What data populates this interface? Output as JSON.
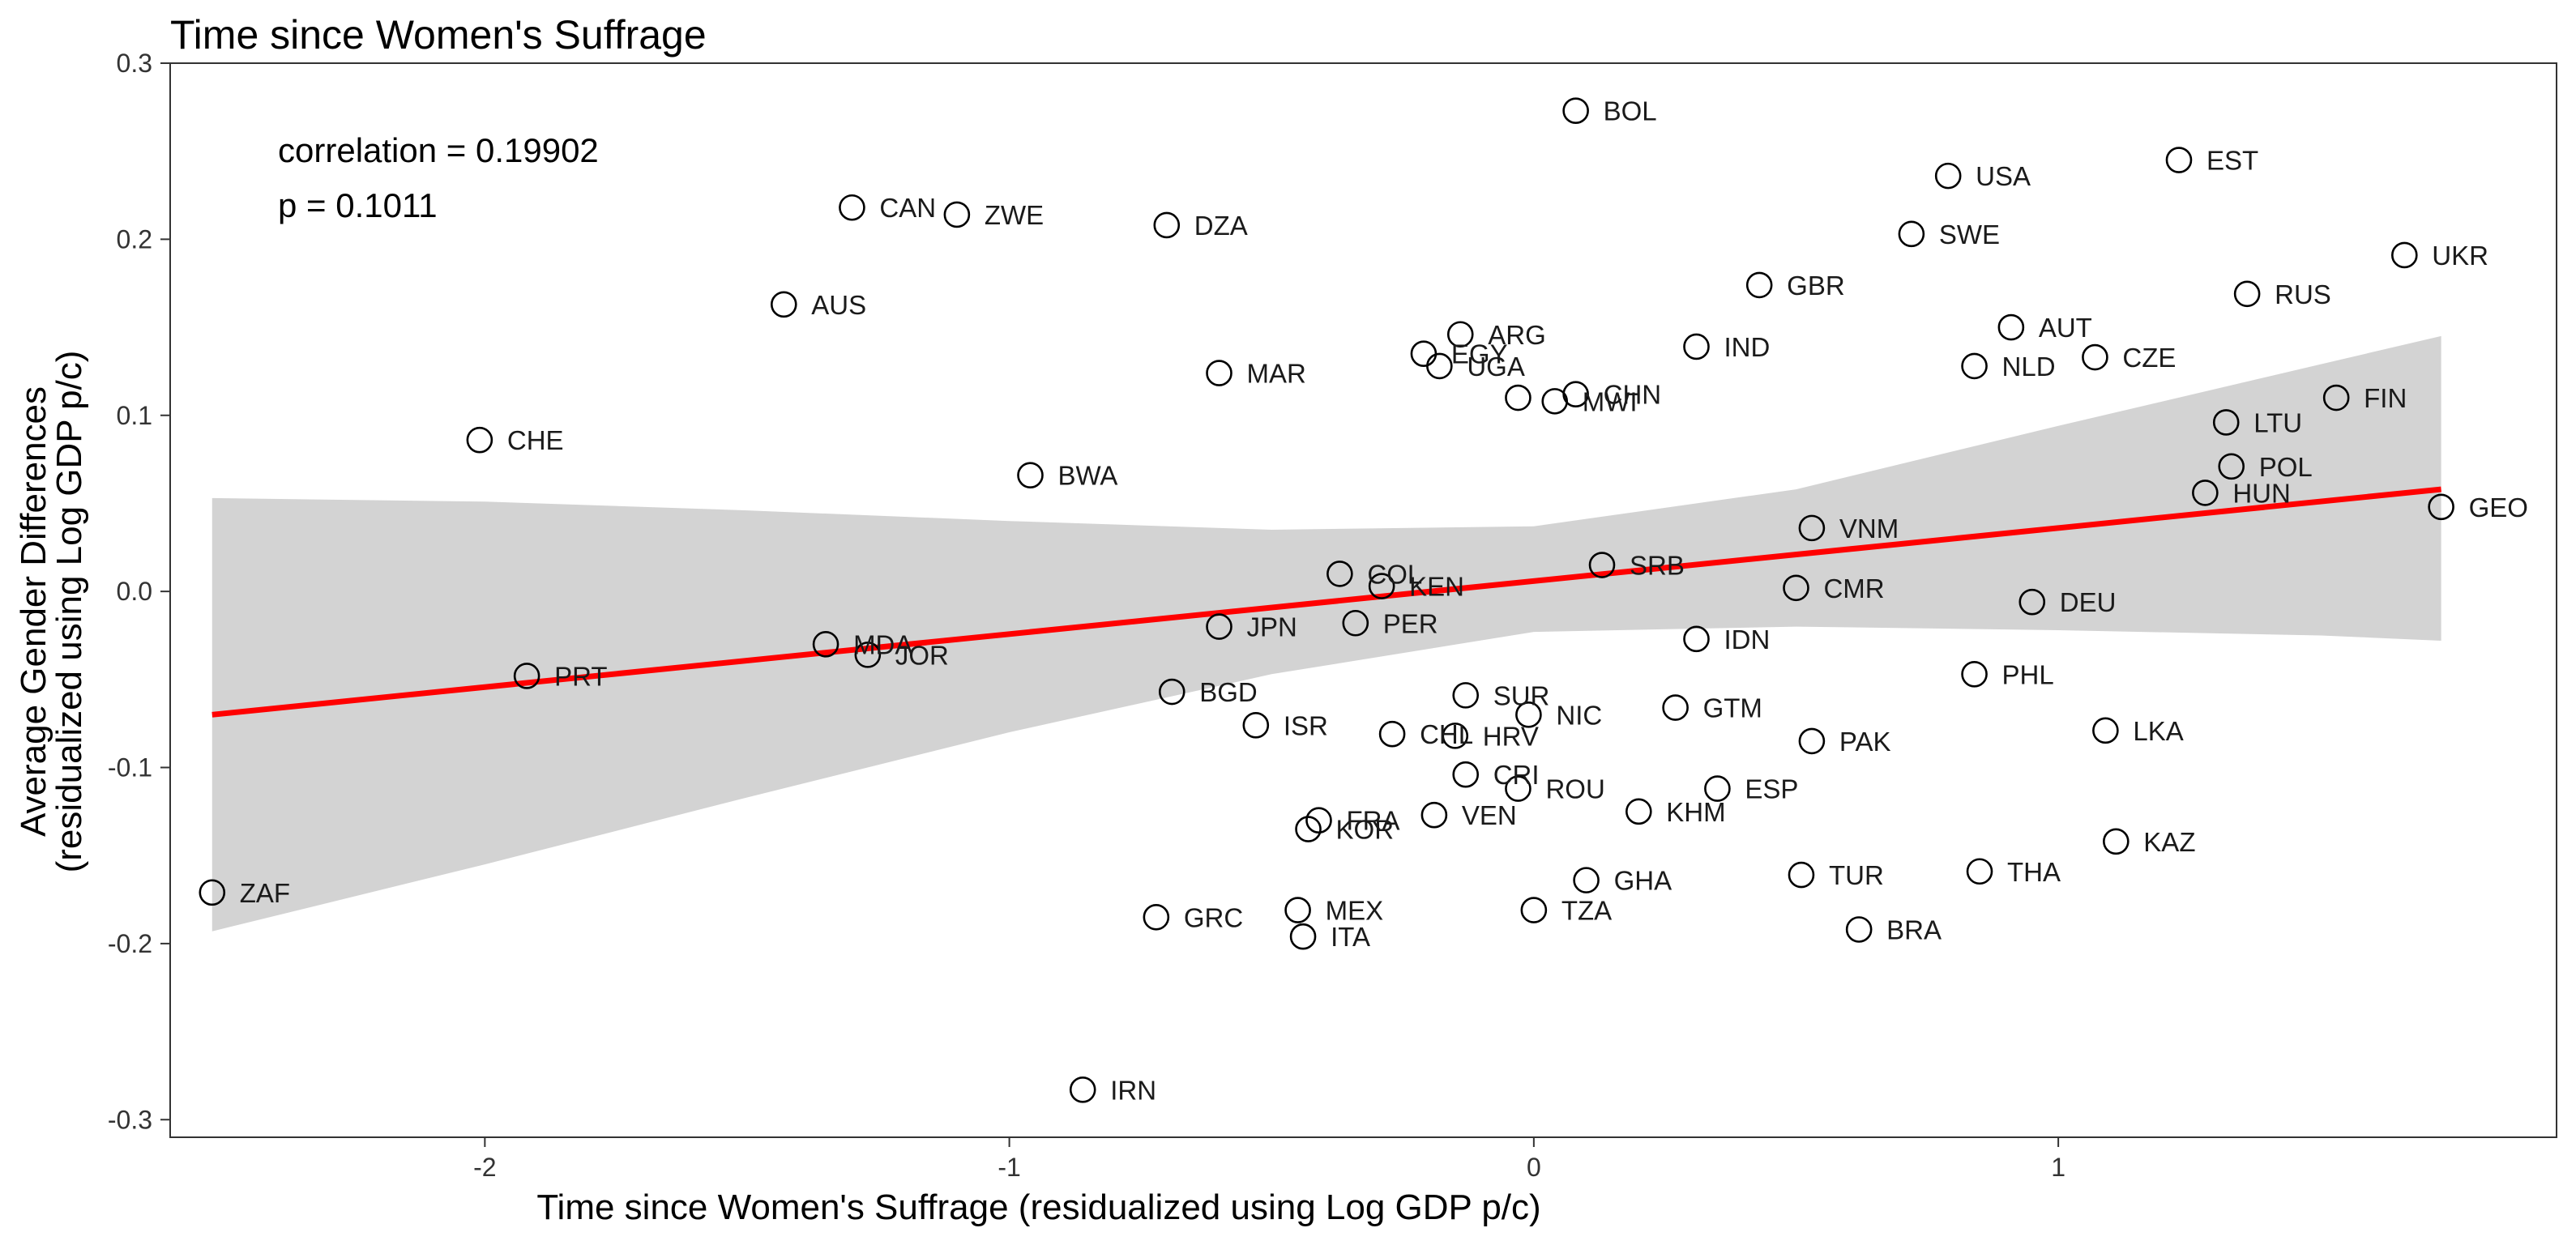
{
  "chart_data": {
    "type": "scatter",
    "title": "Time since Women's Suffrage",
    "xlabel": "Time since Women's Suffrage (residualized using Log GDP p/c)",
    "ylabel_line1": "Average Gender Differences",
    "ylabel_line2": "(residualized using Log GDP p/c)",
    "xlim": [
      -2.6,
      1.95
    ],
    "ylim": [
      -0.31,
      0.3
    ],
    "xticks": [
      -2,
      -1,
      0,
      1
    ],
    "xtick_labels": [
      "-2",
      "-1",
      "0",
      "1"
    ],
    "yticks": [
      0.3,
      0.2,
      0.1,
      0.0,
      -0.1,
      -0.2,
      -0.3
    ],
    "ytick_labels": [
      "0.3",
      "0.2",
      "0.1",
      "0.0",
      "-0.1",
      "-0.2",
      "-0.3"
    ],
    "grid": false,
    "annotations": {
      "correlation": "correlation = 0.19902",
      "p_value": "p = 0.1011"
    },
    "regression": {
      "x": [
        -2.52,
        1.73
      ],
      "y": [
        -0.07,
        0.058
      ],
      "color": "#ff0000"
    },
    "confidence_band": {
      "x": [
        -2.52,
        -2.0,
        -1.5,
        -1.0,
        -0.5,
        0.0,
        0.5,
        1.0,
        1.5,
        1.73
      ],
      "upper": [
        0.053,
        0.051,
        0.046,
        0.04,
        0.035,
        0.037,
        0.058,
        0.094,
        0.129,
        0.145
      ],
      "lower": [
        -0.193,
        -0.155,
        -0.117,
        -0.08,
        -0.047,
        -0.023,
        -0.02,
        -0.022,
        -0.025,
        -0.028
      ],
      "color": "#d3d3d3"
    },
    "points": [
      {
        "label": "BOL",
        "x": 0.08,
        "y": 0.273
      },
      {
        "label": "EST",
        "x": 1.23,
        "y": 0.245
      },
      {
        "label": "USA",
        "x": 0.79,
        "y": 0.236
      },
      {
        "label": "CAN",
        "x": -1.3,
        "y": 0.218
      },
      {
        "label": "ZWE",
        "x": -1.1,
        "y": 0.214
      },
      {
        "label": "DZA",
        "x": -0.7,
        "y": 0.208
      },
      {
        "label": "SWE",
        "x": 0.72,
        "y": 0.203
      },
      {
        "label": "UKR",
        "x": 1.66,
        "y": 0.191
      },
      {
        "label": "GBR",
        "x": 0.43,
        "y": 0.174
      },
      {
        "label": "RUS",
        "x": 1.36,
        "y": 0.169
      },
      {
        "label": "AUS",
        "x": -1.43,
        "y": 0.163
      },
      {
        "label": "AUT",
        "x": 0.91,
        "y": 0.15
      },
      {
        "label": "ARG",
        "x": -0.14,
        "y": 0.146
      },
      {
        "label": "IND",
        "x": 0.31,
        "y": 0.139
      },
      {
        "label": "EGY",
        "x": -0.21,
        "y": 0.135
      },
      {
        "label": "CZE",
        "x": 1.07,
        "y": 0.133
      },
      {
        "label": "UGA",
        "x": -0.18,
        "y": 0.128
      },
      {
        "label": "NLD",
        "x": 0.84,
        "y": 0.128
      },
      {
        "label": "MAR",
        "x": -0.6,
        "y": 0.124
      },
      {
        "label": "CHN",
        "x": 0.08,
        "y": 0.112
      },
      {
        "label": "FIN",
        "x": 1.53,
        "y": 0.11
      },
      {
        "label": "MWI",
        "x": 0.04,
        "y": 0.108
      },
      {
        "label": "",
        "x": -0.03,
        "y": 0.11
      },
      {
        "label": "LTU",
        "x": 1.32,
        "y": 0.096
      },
      {
        "label": "CHE",
        "x": -2.01,
        "y": 0.086
      },
      {
        "label": "POL",
        "x": 1.33,
        "y": 0.071
      },
      {
        "label": "BWA",
        "x": -0.96,
        "y": 0.066
      },
      {
        "label": "HUN",
        "x": 1.28,
        "y": 0.056
      },
      {
        "label": "GEO",
        "x": 1.73,
        "y": 0.048
      },
      {
        "label": "VNM",
        "x": 0.53,
        "y": 0.036
      },
      {
        "label": "SRB",
        "x": 0.13,
        "y": 0.015
      },
      {
        "label": "COL",
        "x": -0.37,
        "y": 0.01
      },
      {
        "label": "KEN",
        "x": -0.29,
        "y": 0.003
      },
      {
        "label": "CMR",
        "x": 0.5,
        "y": 0.002
      },
      {
        "label": "DEU",
        "x": 0.95,
        "y": -0.006
      },
      {
        "label": "JPN",
        "x": -0.6,
        "y": -0.02
      },
      {
        "label": "PER",
        "x": -0.34,
        "y": -0.018
      },
      {
        "label": "IDN",
        "x": 0.31,
        "y": -0.027
      },
      {
        "label": "MDA",
        "x": -1.35,
        "y": -0.03
      },
      {
        "label": "JOR",
        "x": -1.27,
        "y": -0.036
      },
      {
        "label": "PRT",
        "x": -1.92,
        "y": -0.048
      },
      {
        "label": "PHL",
        "x": 0.84,
        "y": -0.047
      },
      {
        "label": "BGD",
        "x": -0.69,
        "y": -0.057
      },
      {
        "label": "SUR",
        "x": -0.13,
        "y": -0.059
      },
      {
        "label": "GTM",
        "x": 0.27,
        "y": -0.066
      },
      {
        "label": "NIC",
        "x": -0.01,
        "y": -0.07
      },
      {
        "label": "ISR",
        "x": -0.53,
        "y": -0.076
      },
      {
        "label": "LKA",
        "x": 1.09,
        "y": -0.079
      },
      {
        "label": "CHL",
        "x": -0.27,
        "y": -0.081
      },
      {
        "label": "HRV",
        "x": -0.15,
        "y": -0.082
      },
      {
        "label": "PAK",
        "x": 0.53,
        "y": -0.085
      },
      {
        "label": "CRI",
        "x": -0.13,
        "y": -0.104
      },
      {
        "label": "ROU",
        "x": -0.03,
        "y": -0.112
      },
      {
        "label": "ESP",
        "x": 0.35,
        "y": -0.112
      },
      {
        "label": "KHM",
        "x": 0.2,
        "y": -0.125
      },
      {
        "label": "VEN",
        "x": -0.19,
        "y": -0.127
      },
      {
        "label": "FRA",
        "x": -0.41,
        "y": -0.13
      },
      {
        "label": "KOR",
        "x": -0.43,
        "y": -0.135
      },
      {
        "label": "KAZ",
        "x": 1.11,
        "y": -0.142
      },
      {
        "label": "THA",
        "x": 0.85,
        "y": -0.159
      },
      {
        "label": "TUR",
        "x": 0.51,
        "y": -0.161
      },
      {
        "label": "GHA",
        "x": 0.1,
        "y": -0.164
      },
      {
        "label": "ZAF",
        "x": -2.52,
        "y": -0.171
      },
      {
        "label": "TZA",
        "x": 0.0,
        "y": -0.181
      },
      {
        "label": "MEX",
        "x": -0.45,
        "y": -0.181
      },
      {
        "label": "GRC",
        "x": -0.72,
        "y": -0.185
      },
      {
        "label": "BRA",
        "x": 0.62,
        "y": -0.192
      },
      {
        "label": "ITA",
        "x": -0.44,
        "y": -0.196
      },
      {
        "label": "IRN",
        "x": -0.86,
        "y": -0.283
      }
    ]
  }
}
